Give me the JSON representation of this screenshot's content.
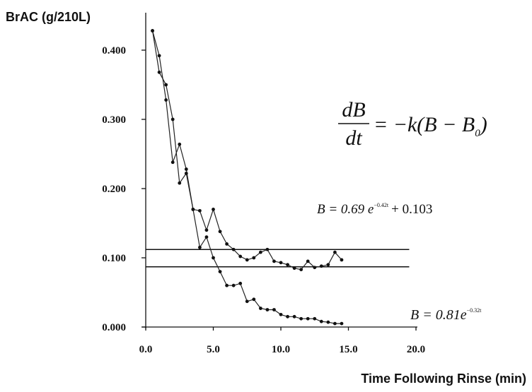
{
  "chart_data": {
    "type": "line",
    "ylabel": "BrAC (g/210L)",
    "xlabel": "Time  Following Rinse (min)",
    "xlim": [
      0,
      20
    ],
    "ylim": [
      0,
      0.45
    ],
    "x_ticks": [
      "0.0",
      "5.0",
      "10.0",
      "15.0",
      "20.0"
    ],
    "x_tick_values": [
      0,
      5,
      10,
      15,
      20
    ],
    "y_ticks": [
      "0.000",
      "0.100",
      "0.200",
      "0.300",
      "0.400"
    ],
    "y_tick_values": [
      0,
      0.1,
      0.2,
      0.3,
      0.4
    ],
    "reference_lines": [
      0.112,
      0.087
    ],
    "reference_x_end": 19.5,
    "annotations": {
      "differential": {
        "lhs_num": "dB",
        "lhs_den": "dt",
        "rhs": "= −k(B − B",
        "sub": "0",
        "close": ")"
      },
      "upper_fit": {
        "lhs": "B = 0.69 e",
        "exp": "−0.42t",
        "rhs": "+ 0.103"
      },
      "lower_fit": {
        "lhs": "B = 0.81e",
        "exp": "−0.32t"
      }
    },
    "series": [
      {
        "x": [
          0.5,
          1.0,
          1.5,
          2.0,
          2.5,
          3.0,
          3.5,
          4.0,
          4.5,
          5.0,
          5.5,
          6.0,
          6.5,
          7.0,
          7.5,
          8.0,
          8.5,
          9.0,
          9.5,
          10.0,
          10.5,
          11.0,
          11.5,
          12.0,
          12.5,
          13.0,
          13.5,
          14.0,
          14.5
        ],
        "y": [
          0.428,
          0.392,
          0.328,
          0.238,
          0.264,
          0.228,
          0.17,
          0.168,
          0.14,
          0.17,
          0.138,
          0.12,
          0.112,
          0.102,
          0.097,
          0.1,
          0.108,
          0.112,
          0.095,
          0.093,
          0.09,
          0.085,
          0.083,
          0.095,
          0.086,
          0.088,
          0.09,
          0.108,
          0.097
        ]
      },
      {
        "x": [
          0.5,
          1.0,
          1.5,
          2.0,
          2.5,
          3.0,
          3.5,
          4.0,
          4.5,
          5.0,
          5.5,
          6.0,
          6.5,
          7.0,
          7.5,
          8.0,
          8.5,
          9.0,
          9.5,
          10.0,
          10.5,
          11.0,
          11.5,
          12.0,
          12.5,
          13.0,
          13.5,
          14.0,
          14.5
        ],
        "y": [
          0.428,
          0.368,
          0.35,
          0.3,
          0.208,
          0.222,
          0.17,
          0.115,
          0.13,
          0.1,
          0.08,
          0.06,
          0.06,
          0.063,
          0.037,
          0.04,
          0.027,
          0.025,
          0.025,
          0.018,
          0.015,
          0.015,
          0.012,
          0.012,
          0.012,
          0.008,
          0.007,
          0.005,
          0.005
        ]
      }
    ]
  }
}
